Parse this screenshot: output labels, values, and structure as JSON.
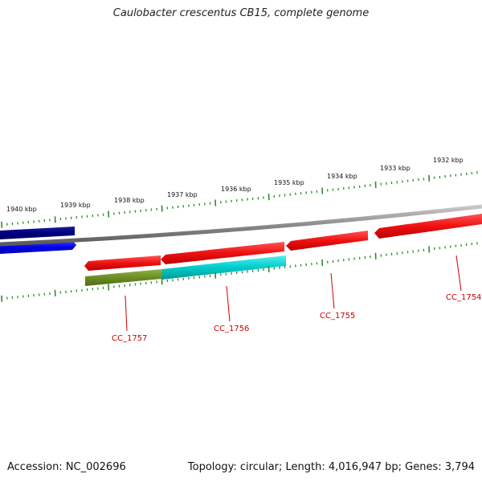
{
  "title": "Caulobacter crescentus CB15, complete genome",
  "footer": {
    "accession": "Accession: NC_002696",
    "summary": "Topology: circular; Length: 4,016,947 bp; Genes: 3,794"
  },
  "ruler": {
    "labels": [
      "1940 kbp",
      "1939 kbp",
      "1938 kbp",
      "1937 kbp",
      "1936 kbp",
      "1935 kbp",
      "1934 kbp",
      "1933 kbp",
      "1932 kbp"
    ]
  },
  "genes": [
    {
      "label": "CC_1757",
      "color": "#ee1111"
    },
    {
      "label": "CC_1756",
      "color": "#ee1111"
    },
    {
      "label": "CC_1755",
      "color": "#ee1111"
    },
    {
      "label": "CC_1754",
      "color": "#ee1111"
    }
  ],
  "colors": {
    "backbone": "#8a8a8a",
    "ticks": "#2e8b2e",
    "forward_dark": "#000080",
    "forward_blue": "#0000ee",
    "reverse_red": "#ee1111",
    "olive": "#6b8e23",
    "cyan": "#00cccc",
    "label_red": "#cc0000"
  }
}
